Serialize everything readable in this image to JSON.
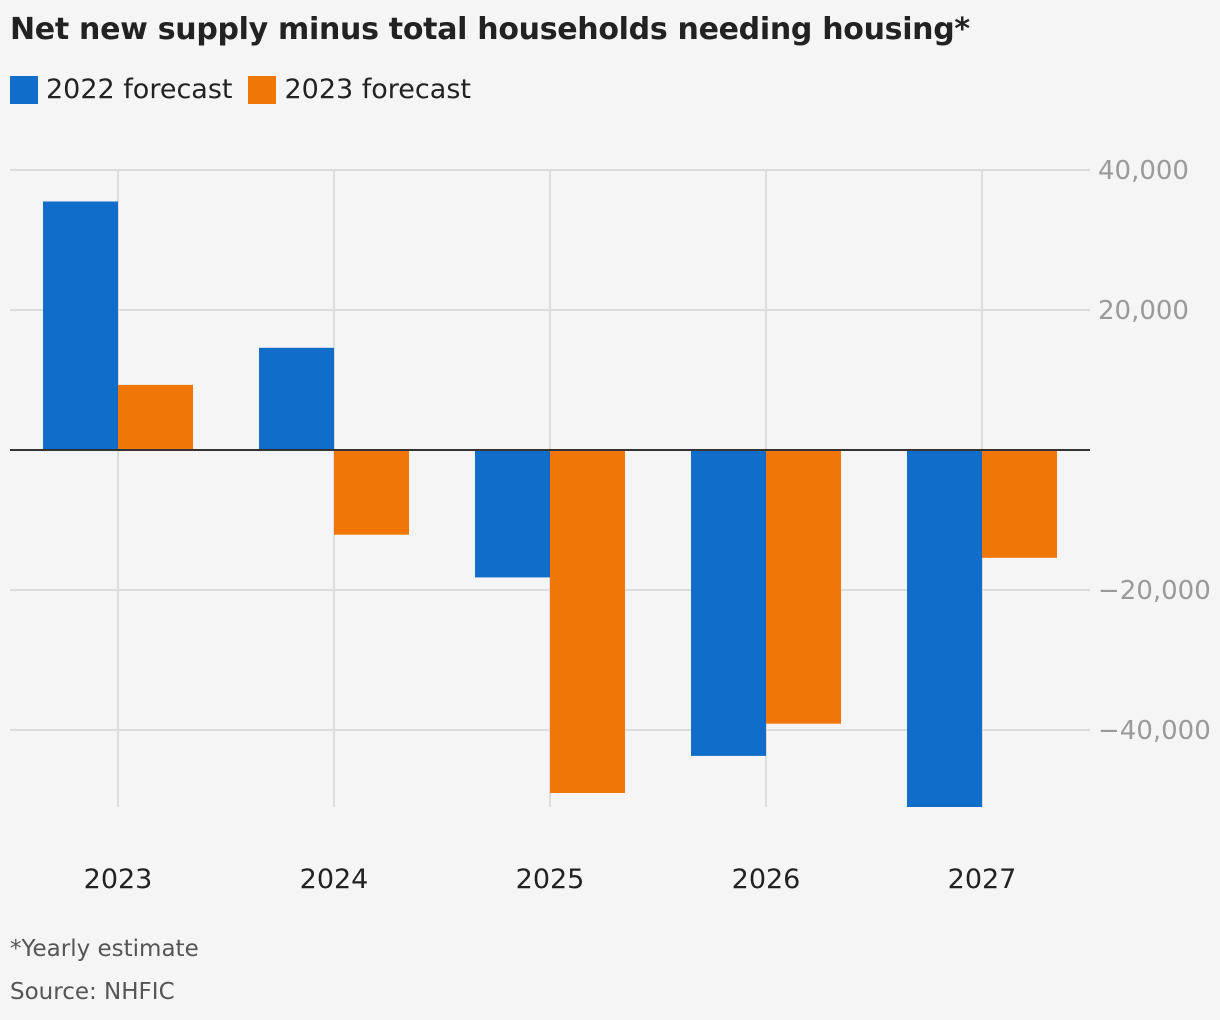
{
  "chart_data": {
    "type": "bar",
    "title": "Net new supply minus total households needing housing*",
    "categories": [
      "2023",
      "2024",
      "2025",
      "2026",
      "2027"
    ],
    "series": [
      {
        "name": "2022 forecast",
        "color": "#106dc9",
        "values": [
          35500,
          14600,
          -18200,
          -43700,
          -51000
        ]
      },
      {
        "name": "2023 forecast",
        "color": "#f07607",
        "values": [
          9300,
          -12100,
          -49000,
          -39100,
          -15400
        ]
      }
    ],
    "ylim": [
      -51000,
      40000
    ],
    "yticks": [
      40000,
      20000,
      -20000,
      -40000
    ],
    "ytick_labels": [
      "40,000",
      "20,000",
      "−20,000",
      "−40,000"
    ],
    "grid": true,
    "legend_position": "top-left",
    "footnote": "*Yearly estimate",
    "source": "Source: NHFIC"
  }
}
